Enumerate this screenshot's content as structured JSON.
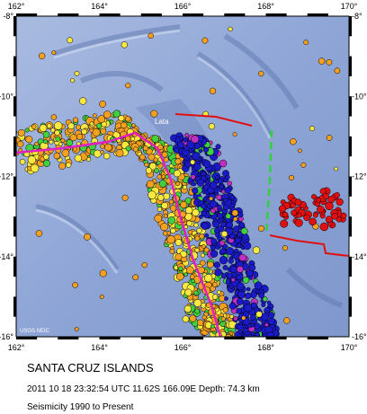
{
  "map": {
    "xticks": [
      "162°",
      "164°",
      "166°",
      "168°",
      "170°"
    ],
    "yticks": [
      "-8°",
      "-10°",
      "-12°",
      "-14°",
      "-16°"
    ],
    "place": "Lata",
    "credit": "USGS NEIC"
  },
  "caption": {
    "title": "SANTA CRUZ ISLANDS",
    "event": "2011 10 18 23:32:54 UTC 11.62S 166.09E Depth: 74.3 km",
    "range": "Seismicity 1990 to Present"
  }
}
